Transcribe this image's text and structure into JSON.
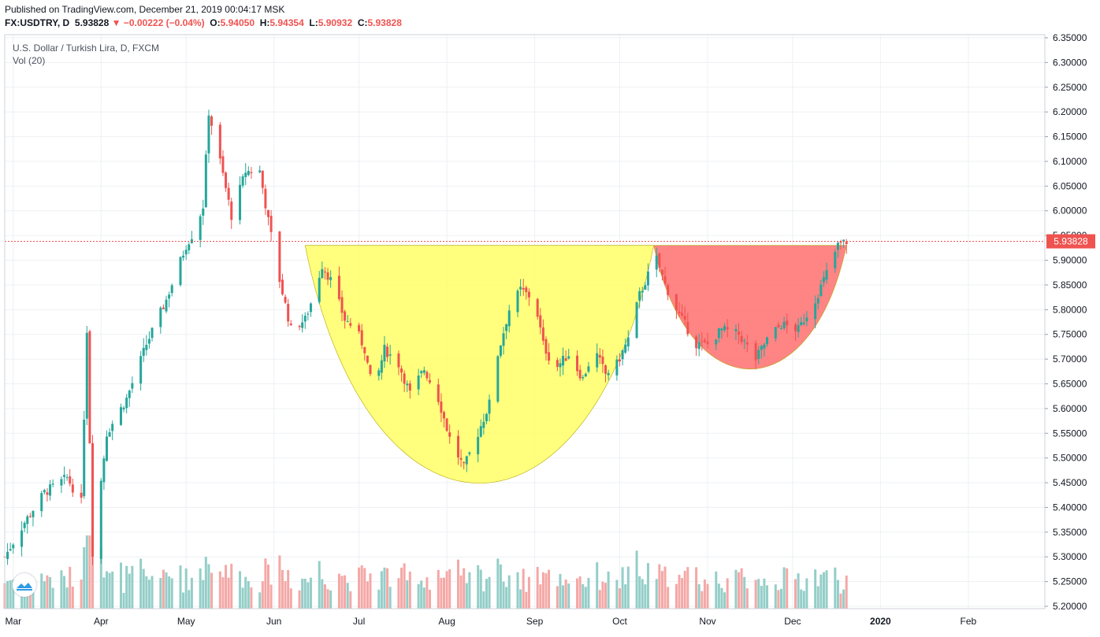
{
  "header": {
    "published": "Published on TradingView.com, December 21, 2019 00:04:17 MSK",
    "symbol": "FX:USDTRY, D",
    "last": "5.93828",
    "change": "▼ −0.00222 (−0.04%)",
    "o_label": "O:",
    "o": "5.94050",
    "h_label": "H:",
    "h": "5.94354",
    "l_label": "L:",
    "l": "5.90932",
    "c_label": "C:",
    "c": "5.93828"
  },
  "legend": {
    "title": "U.S. Dollar / Turkish Lira, D, FXCM",
    "volume": "Vol (20)"
  },
  "colors": {
    "up": "#26a69a",
    "down": "#ef5350",
    "vol_up": "#94cec8",
    "vol_down": "#f4a8a6",
    "cup_fill": "#ffff66",
    "handle_fill": "#ff6e6e",
    "price_line": "#ef5350",
    "grid": "#eef0f4"
  },
  "icons": {
    "logo": "tradingview-cloud-icon"
  },
  "chart_data": {
    "type": "candlestick",
    "title": "U.S. Dollar / Turkish Lira, D, FXCM",
    "ylim": [
      5.19,
      6.36
    ],
    "y_ticks": [
      "6.35000",
      "6.30000",
      "6.25000",
      "6.20000",
      "6.15000",
      "6.10000",
      "6.05000",
      "6.00000",
      "5.95000",
      "5.90000",
      "5.85000",
      "5.80000",
      "5.75000",
      "5.70000",
      "5.65000",
      "5.60000",
      "5.55000",
      "5.50000",
      "5.45000",
      "5.40000",
      "5.35000",
      "5.30000",
      "5.25000",
      "5.20000"
    ],
    "x_ticks": [
      {
        "label": "Mar",
        "date": "2019-03-01"
      },
      {
        "label": "Apr",
        "date": "2019-04-01"
      },
      {
        "label": "May",
        "date": "2019-05-01"
      },
      {
        "label": "Jun",
        "date": "2019-06-01"
      },
      {
        "label": "Jul",
        "date": "2019-07-01"
      },
      {
        "label": "Aug",
        "date": "2019-08-01"
      },
      {
        "label": "Sep",
        "date": "2019-09-01"
      },
      {
        "label": "Oct",
        "date": "2019-10-01"
      },
      {
        "label": "Nov",
        "date": "2019-11-01"
      },
      {
        "label": "Dec",
        "date": "2019-12-01"
      },
      {
        "label": "2020",
        "date": "2020-01-01"
      },
      {
        "label": "Feb",
        "date": "2020-02-01"
      }
    ],
    "x_range": [
      "2019-02-26",
      "2020-02-28"
    ],
    "last_price": "5.93828",
    "price_path": [
      [
        "2019-02-26",
        5.3
      ],
      [
        "2019-03-05",
        5.37
      ],
      [
        "2019-03-12",
        5.43
      ],
      [
        "2019-03-20",
        5.46
      ],
      [
        "2019-03-25",
        5.41
      ],
      [
        "2019-03-27",
        5.76
      ],
      [
        "2019-03-29",
        5.31
      ],
      [
        "2019-04-03",
        5.55
      ],
      [
        "2019-04-10",
        5.62
      ],
      [
        "2019-04-17",
        5.73
      ],
      [
        "2019-04-24",
        5.82
      ],
      [
        "2019-05-01",
        5.93
      ],
      [
        "2019-05-04",
        5.96
      ],
      [
        "2019-05-07",
        6.01
      ],
      [
        "2019-05-09",
        6.2
      ],
      [
        "2019-05-13",
        6.1
      ],
      [
        "2019-05-17",
        5.99
      ],
      [
        "2019-05-22",
        6.08
      ],
      [
        "2019-05-27",
        6.08
      ],
      [
        "2019-05-30",
        5.98
      ],
      [
        "2019-06-03",
        5.86
      ],
      [
        "2019-06-07",
        5.76
      ],
      [
        "2019-06-12",
        5.78
      ],
      [
        "2019-06-15",
        5.83
      ],
      [
        "2019-06-18",
        5.89
      ],
      [
        "2019-06-21",
        5.86
      ],
      [
        "2019-06-26",
        5.78
      ],
      [
        "2019-06-30",
        5.76
      ],
      [
        "2019-07-03",
        5.72
      ],
      [
        "2019-07-06",
        5.63
      ],
      [
        "2019-07-10",
        5.72
      ],
      [
        "2019-07-15",
        5.69
      ],
      [
        "2019-07-19",
        5.63
      ],
      [
        "2019-07-24",
        5.68
      ],
      [
        "2019-07-29",
        5.62
      ],
      [
        "2019-08-02",
        5.54
      ],
      [
        "2019-08-07",
        5.48
      ],
      [
        "2019-08-12",
        5.55
      ],
      [
        "2019-08-16",
        5.61
      ],
      [
        "2019-08-19",
        5.71
      ],
      [
        "2019-08-23",
        5.8
      ],
      [
        "2019-08-27",
        5.84
      ],
      [
        "2019-09-01",
        5.82
      ],
      [
        "2019-09-04",
        5.73
      ],
      [
        "2019-09-08",
        5.68
      ],
      [
        "2019-09-13",
        5.71
      ],
      [
        "2019-09-18",
        5.66
      ],
      [
        "2019-09-22",
        5.72
      ],
      [
        "2019-09-26",
        5.67
      ],
      [
        "2019-09-30",
        5.69
      ],
      [
        "2019-10-04",
        5.74
      ],
      [
        "2019-10-08",
        5.83
      ],
      [
        "2019-10-11",
        5.87
      ],
      [
        "2019-10-13",
        5.92
      ],
      [
        "2019-10-17",
        5.85
      ],
      [
        "2019-10-22",
        5.79
      ],
      [
        "2019-10-28",
        5.73
      ],
      [
        "2019-11-01",
        5.73
      ],
      [
        "2019-11-06",
        5.76
      ],
      [
        "2019-11-12",
        5.75
      ],
      [
        "2019-11-18",
        5.7
      ],
      [
        "2019-11-22",
        5.74
      ],
      [
        "2019-11-27",
        5.77
      ],
      [
        "2019-12-03",
        5.76
      ],
      [
        "2019-12-09",
        5.82
      ],
      [
        "2019-12-12",
        5.86
      ],
      [
        "2019-12-17",
        5.93
      ],
      [
        "2019-12-20",
        5.93828
      ]
    ],
    "volume_axis_max": 3.0,
    "patterns": [
      {
        "name": "cup",
        "color": "#ffff66",
        "start": "2019-06-12",
        "end": "2019-10-13",
        "rim": 5.93,
        "bottom": 5.455
      },
      {
        "name": "handle",
        "color": "#ff6e6e",
        "start": "2019-10-13",
        "end": "2019-12-20",
        "rim": 5.93,
        "bottom": 5.683
      }
    ]
  }
}
